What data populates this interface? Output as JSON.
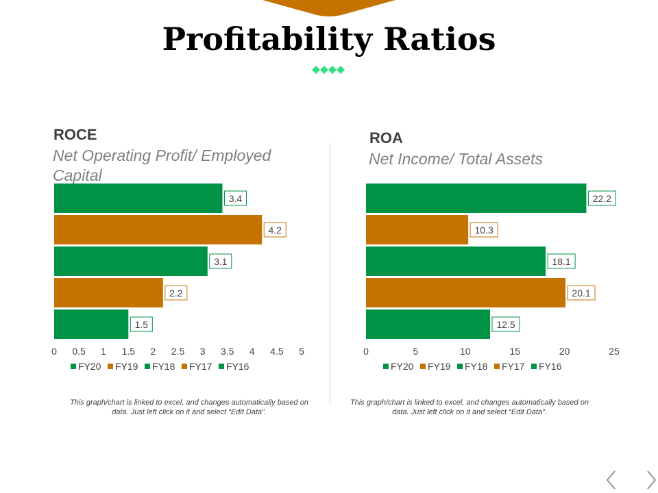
{
  "title": "Profitability Ratios",
  "colors": {
    "green": "#009245",
    "orange": "#C47200",
    "accent": "#2EE080",
    "text": "#404040",
    "subtle": "#7f7f7f"
  },
  "note_text": "This graph/chart is linked to excel, and changes automatically based on data. Just left click on it and select “Edit Data”.",
  "nav": {
    "prev_icon": "chevron-left-icon",
    "next_icon": "chevron-right-icon"
  },
  "chart_data": [
    {
      "type": "bar",
      "orientation": "horizontal",
      "title": "ROCE",
      "subtitle": "Net Operating Profit/ Employed Capital",
      "categories": [
        "FY20",
        "FY19",
        "FY18",
        "FY17",
        "FY16"
      ],
      "values": [
        3.4,
        4.2,
        3.1,
        2.2,
        1.5
      ],
      "bar_colors": [
        "#009245",
        "#C47200",
        "#009245",
        "#C47200",
        "#009245"
      ],
      "xlim": [
        0,
        5
      ],
      "ticks": [
        "0",
        "0.5",
        "1",
        "1.5",
        "2",
        "2.5",
        "3",
        "3.5",
        "4",
        "4.5",
        "5"
      ],
      "legend": [
        "FY20",
        "FY19",
        "FY18",
        "FY17",
        "FY16"
      ],
      "legend_position": "bottom",
      "grid": false
    },
    {
      "type": "bar",
      "orientation": "horizontal",
      "title": "ROA",
      "subtitle": "Net Income/ Total Assets",
      "categories": [
        "FY20",
        "FY19",
        "FY18",
        "FY17",
        "FY16"
      ],
      "values": [
        22.2,
        10.3,
        18.1,
        20.1,
        12.5
      ],
      "bar_colors": [
        "#009245",
        "#C47200",
        "#009245",
        "#C47200",
        "#009245"
      ],
      "xlim": [
        0,
        25
      ],
      "ticks": [
        "0",
        "5",
        "10",
        "15",
        "20",
        "25"
      ],
      "legend": [
        "FY20",
        "FY19",
        "FY18",
        "FY17",
        "FY16"
      ],
      "legend_position": "bottom",
      "grid": false
    }
  ]
}
